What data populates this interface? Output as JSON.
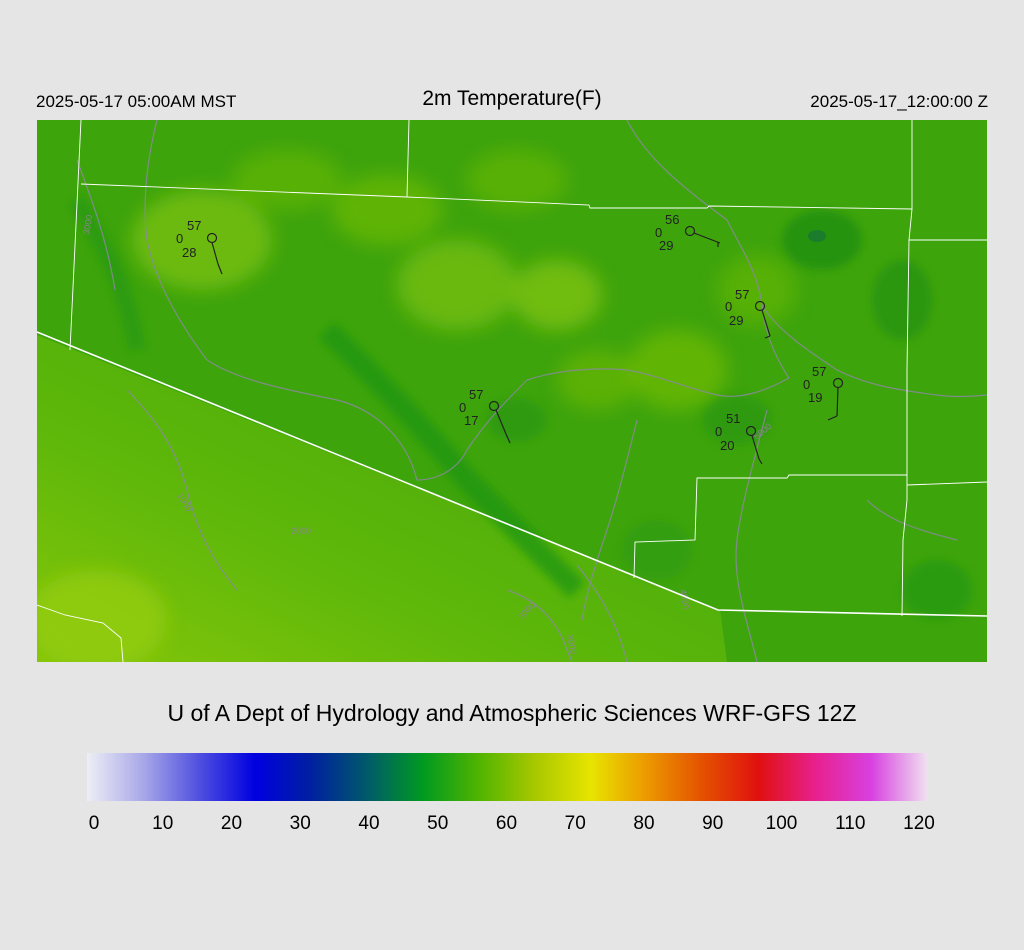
{
  "header": {
    "title": "2m Temperature(F)",
    "local_time": "2025-05-17 05:00AM MST",
    "utc_time": "2025-05-17_12:00:00 Z"
  },
  "footer": {
    "credit": "U of A Dept of Hydrology and Atmospheric Sciences WRF-GFS 12Z"
  },
  "colorbar": {
    "ticks": [
      "0",
      "10",
      "20",
      "30",
      "40",
      "50",
      "60",
      "70",
      "80",
      "90",
      "100",
      "110",
      "120"
    ],
    "colors": [
      "#eeeef6",
      "#a8a8e8",
      "#5050e0",
      "#0000e0",
      "#0020a0",
      "#005a6a",
      "#009a20",
      "#50b400",
      "#a8c800",
      "#e8e400",
      "#ec9800",
      "#e45000",
      "#e01010",
      "#e8208c",
      "#d840e0",
      "#f0e0f0"
    ]
  },
  "map": {
    "base_color": "#3ea40c",
    "contour_labels": [
      "3000",
      "4000",
      "5000",
      "2000",
      "1000"
    ],
    "stations": [
      {
        "temp": "57",
        "cloud": "0",
        "dew": "28"
      },
      {
        "temp": "56",
        "cloud": "0",
        "dew": "29"
      },
      {
        "temp": "57",
        "cloud": "0",
        "dew": "29"
      },
      {
        "temp": "57",
        "cloud": "0",
        "dew": "19"
      },
      {
        "temp": "57",
        "cloud": "0",
        "dew": "17"
      },
      {
        "temp": "51",
        "cloud": "0",
        "dew": "20"
      }
    ]
  }
}
